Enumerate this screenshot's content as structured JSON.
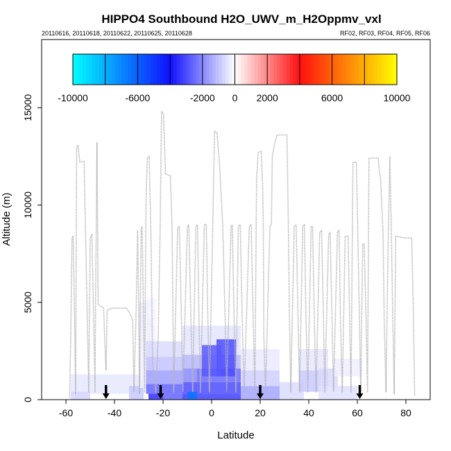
{
  "chart_data": {
    "type": "heatmap",
    "title": "HIPPO4 Southbound H2O_UWV_m_H2Oppmv_vxl",
    "subtitle_left": "20110616, 20110618, 20110622, 20110625, 20110628",
    "subtitle_right": "RF02, RF03, RF04, RF05, RF06",
    "xlabel": "Latitude",
    "ylabel": "Altitude (m)",
    "xlim": [
      -70,
      90
    ],
    "ylim": [
      0,
      18500
    ],
    "x_ticks": [
      -60,
      -40,
      -20,
      0,
      20,
      40,
      60,
      80
    ],
    "x_tick_labels": [
      "-60",
      "-40",
      "-20",
      "0",
      "20",
      "40",
      "60",
      "80"
    ],
    "y_ticks": [
      0,
      5000,
      10000,
      15000
    ],
    "y_tick_labels": [
      "0",
      "5000",
      "10000",
      "15000"
    ],
    "colorbar": {
      "range": [
        -10000,
        10000
      ],
      "tick_values": [
        -10000,
        -6000,
        -2000,
        0,
        2000,
        6000,
        10000
      ],
      "tick_labels": [
        "-10000",
        "-6000",
        "-2000",
        "0",
        "2000",
        "6000",
        "10000"
      ],
      "divisions": [
        -10000,
        -8000,
        -6000,
        -4000,
        -2000,
        0,
        2000,
        4000,
        6000,
        8000,
        10000
      ],
      "stops": [
        {
          "value": -10000,
          "color": "#00ffff"
        },
        {
          "value": -4000,
          "color": "#1010ff"
        },
        {
          "value": 0,
          "color": "#ffffff"
        },
        {
          "value": 4000,
          "color": "#ff1010"
        },
        {
          "value": 10000,
          "color": "#ffff00"
        }
      ]
    },
    "arrow_latitudes": [
      -43.5,
      -21,
      20,
      61
    ],
    "heat_cells": [
      {
        "lat": [
          -58,
          -28
        ],
        "alt": [
          300,
          1300
        ],
        "value": -400
      },
      {
        "lat": [
          -58,
          -50
        ],
        "alt": [
          0,
          400
        ],
        "value": -700
      },
      {
        "lat": [
          -34,
          -28
        ],
        "alt": [
          0,
          700
        ],
        "value": -900
      },
      {
        "lat": [
          -30,
          -26
        ],
        "alt": [
          600,
          5000
        ],
        "value": -250
      },
      {
        "lat": [
          -27,
          -24
        ],
        "alt": [
          1200,
          4200
        ],
        "value": -450
      },
      {
        "lat": [
          -27,
          -23
        ],
        "alt": [
          3000,
          5200
        ],
        "value": -200
      },
      {
        "lat": [
          -27,
          -12
        ],
        "alt": [
          2200,
          3000
        ],
        "value": -600
      },
      {
        "lat": [
          -27,
          -12
        ],
        "alt": [
          1500,
          2200
        ],
        "value": -1000
      },
      {
        "lat": [
          -27,
          -12
        ],
        "alt": [
          800,
          1500
        ],
        "value": -1600
      },
      {
        "lat": [
          -27,
          -12
        ],
        "alt": [
          300,
          800
        ],
        "value": -2600
      },
      {
        "lat": [
          -26,
          -20
        ],
        "alt": [
          0,
          300
        ],
        "value": -3500
      },
      {
        "lat": [
          -20,
          -12
        ],
        "alt": [
          0,
          300
        ],
        "value": -2600
      },
      {
        "lat": [
          -12,
          12
        ],
        "alt": [
          2300,
          3800
        ],
        "value": -450
      },
      {
        "lat": [
          -12,
          12
        ],
        "alt": [
          1600,
          2300
        ],
        "value": -1200
      },
      {
        "lat": [
          -12,
          -6
        ],
        "alt": [
          900,
          1600
        ],
        "value": -2000
      },
      {
        "lat": [
          -6,
          12
        ],
        "alt": [
          900,
          1600
        ],
        "value": -2500
      },
      {
        "lat": [
          -12,
          12
        ],
        "alt": [
          300,
          900
        ],
        "value": -3000
      },
      {
        "lat": [
          -12,
          -6
        ],
        "alt": [
          0,
          300
        ],
        "value": -3300
      },
      {
        "lat": [
          -10,
          -6
        ],
        "alt": [
          0,
          400
        ],
        "value": -6500
      },
      {
        "lat": [
          -6,
          12
        ],
        "alt": [
          0,
          300
        ],
        "value": -3200
      },
      {
        "lat": [
          2,
          10
        ],
        "alt": [
          1200,
          3100
        ],
        "value": -3000
      },
      {
        "lat": [
          -4,
          4
        ],
        "alt": [
          1200,
          2800
        ],
        "value": -2800
      },
      {
        "lat": [
          12,
          28
        ],
        "alt": [
          1500,
          2600
        ],
        "value": -350
      },
      {
        "lat": [
          12,
          28
        ],
        "alt": [
          700,
          1500
        ],
        "value": -800
      },
      {
        "lat": [
          12,
          28
        ],
        "alt": [
          0,
          700
        ],
        "value": -1500
      },
      {
        "lat": [
          28,
          38
        ],
        "alt": [
          0,
          900
        ],
        "value": -600
      },
      {
        "lat": [
          36,
          48
        ],
        "alt": [
          1500,
          2600
        ],
        "value": -400
      },
      {
        "lat": [
          36,
          48
        ],
        "alt": [
          400,
          1500
        ],
        "value": -900
      },
      {
        "lat": [
          44,
          52
        ],
        "alt": [
          600,
          1600
        ],
        "value": -600
      },
      {
        "lat": [
          50,
          62
        ],
        "alt": [
          1200,
          2100
        ],
        "value": -250
      },
      {
        "lat": [
          44,
          60
        ],
        "alt": [
          0,
          700
        ],
        "value": -500
      }
    ],
    "flight_track": [
      [
        -58.5,
        100
      ],
      [
        -58.0,
        3300
      ],
      [
        -57.5,
        8300
      ],
      [
        -57.0,
        8400
      ],
      [
        -56.5,
        4500
      ],
      [
        -56.0,
        300
      ],
      [
        -55.6,
        12900
      ],
      [
        -55.0,
        13100
      ],
      [
        -54.3,
        12200
      ],
      [
        -52.5,
        12250
      ],
      [
        -52.0,
        9000
      ],
      [
        -51.0,
        3000
      ],
      [
        -50.6,
        400
      ],
      [
        -50.0,
        8300
      ],
      [
        -49.3,
        8500
      ],
      [
        -48.6,
        4200
      ],
      [
        -48.0,
        400
      ],
      [
        -47.8,
        5000
      ],
      [
        -47.2,
        13200
      ],
      [
        -46.7,
        4900
      ],
      [
        -44.5,
        4700
      ],
      [
        -43.5,
        1500
      ],
      [
        -43.0,
        4600
      ],
      [
        -41.0,
        4700
      ],
      [
        -36.0,
        4700
      ],
      [
        -35.0,
        4700
      ],
      [
        -34.0,
        4500
      ],
      [
        -32.5,
        4100
      ],
      [
        -32.0,
        400
      ],
      [
        -31.0,
        5000
      ],
      [
        -30.5,
        8700
      ],
      [
        -30.0,
        4700
      ],
      [
        -29.7,
        300
      ],
      [
        -29.0,
        8800
      ],
      [
        -28.6,
        8900
      ],
      [
        -28.0,
        3800
      ],
      [
        -27.6,
        400
      ],
      [
        -27.0,
        10400
      ],
      [
        -26.5,
        12400
      ],
      [
        -25.7,
        12500
      ],
      [
        -25.0,
        8500
      ],
      [
        -24.3,
        1800
      ],
      [
        -23.0,
        400
      ],
      [
        -22.0,
        3200
      ],
      [
        -21.2,
        8700
      ],
      [
        -20.6,
        14800
      ],
      [
        -19.8,
        14700
      ],
      [
        -19.0,
        11600
      ],
      [
        -17.0,
        11500
      ],
      [
        -16.3,
        8900
      ],
      [
        -15.6,
        400
      ],
      [
        -14.0,
        8800
      ],
      [
        -13.3,
        8900
      ],
      [
        -12.5,
        4500
      ],
      [
        -11.8,
        400
      ],
      [
        -10.0,
        8900
      ],
      [
        -9.4,
        9000
      ],
      [
        -8.6,
        4600
      ],
      [
        -7.8,
        400
      ],
      [
        -6.5,
        8900
      ],
      [
        -5.8,
        9000
      ],
      [
        -5.2,
        4200
      ],
      [
        -4.6,
        400
      ],
      [
        -3.0,
        9000
      ],
      [
        -2.2,
        9000
      ],
      [
        -1.6,
        4500
      ],
      [
        -0.9,
        400
      ],
      [
        0.5,
        9200
      ],
      [
        1.2,
        13800
      ],
      [
        2.2,
        13700
      ],
      [
        3.2,
        12200
      ],
      [
        4.6,
        8900
      ],
      [
        5.6,
        4000
      ],
      [
        6.2,
        400
      ],
      [
        8.0,
        8900
      ],
      [
        8.5,
        9000
      ],
      [
        9.2,
        4400
      ],
      [
        10.0,
        400
      ],
      [
        11.0,
        8900
      ],
      [
        11.8,
        9000
      ],
      [
        12.5,
        4600
      ],
      [
        13.4,
        400
      ],
      [
        15.5,
        8900
      ],
      [
        16.3,
        9000
      ],
      [
        17.0,
        4700
      ],
      [
        17.8,
        400
      ],
      [
        18.5,
        11300
      ],
      [
        19.2,
        12700
      ],
      [
        20.4,
        12750
      ],
      [
        21.0,
        11000
      ],
      [
        21.3,
        9000
      ],
      [
        21.5,
        3200
      ],
      [
        22.2,
        400
      ],
      [
        24.0,
        8900
      ],
      [
        24.6,
        9000
      ],
      [
        25.0,
        12500
      ],
      [
        26.0,
        13200
      ],
      [
        27.0,
        13600
      ],
      [
        31.0,
        13600
      ],
      [
        31.6,
        9000
      ],
      [
        32.0,
        4600
      ],
      [
        32.6,
        400
      ],
      [
        34.0,
        8900
      ],
      [
        34.8,
        9000
      ],
      [
        35.5,
        4600
      ],
      [
        36.2,
        400
      ],
      [
        37.5,
        8900
      ],
      [
        38.2,
        9000
      ],
      [
        38.8,
        4500
      ],
      [
        39.6,
        400
      ],
      [
        41.0,
        8900
      ],
      [
        41.6,
        8900
      ],
      [
        42.2,
        4600
      ],
      [
        43.0,
        400
      ],
      [
        44.5,
        8600
      ],
      [
        45.3,
        8700
      ],
      [
        46.0,
        4500
      ],
      [
        46.6,
        400
      ],
      [
        48.2,
        8500
      ],
      [
        48.8,
        8600
      ],
      [
        49.5,
        4500
      ],
      [
        50.2,
        400
      ],
      [
        51.8,
        8600
      ],
      [
        52.5,
        8700
      ],
      [
        53.0,
        4400
      ],
      [
        53.8,
        400
      ],
      [
        55.0,
        8400
      ],
      [
        56.2,
        8400
      ],
      [
        56.8,
        4400
      ],
      [
        57.4,
        400
      ],
      [
        58.2,
        12200
      ],
      [
        59.6,
        12200
      ],
      [
        60.2,
        8500
      ],
      [
        60.8,
        4600
      ],
      [
        61.4,
        400
      ],
      [
        62.2,
        8000
      ],
      [
        62.8,
        8000
      ],
      [
        63.5,
        4500
      ],
      [
        64.2,
        400
      ],
      [
        64.8,
        12400
      ],
      [
        68.6,
        12400
      ],
      [
        69.0,
        11800
      ],
      [
        69.6,
        11300
      ],
      [
        70.6,
        8500
      ],
      [
        71.1,
        4000
      ],
      [
        71.8,
        400
      ],
      [
        72.6,
        7300
      ],
      [
        73.4,
        12500
      ],
      [
        74.0,
        8700
      ],
      [
        74.6,
        4200
      ],
      [
        75.2,
        300
      ],
      [
        75.8,
        8400
      ],
      [
        80.0,
        8300
      ],
      [
        82.4,
        8300
      ],
      [
        83.0,
        5000
      ],
      [
        83.6,
        200
      ]
    ]
  }
}
